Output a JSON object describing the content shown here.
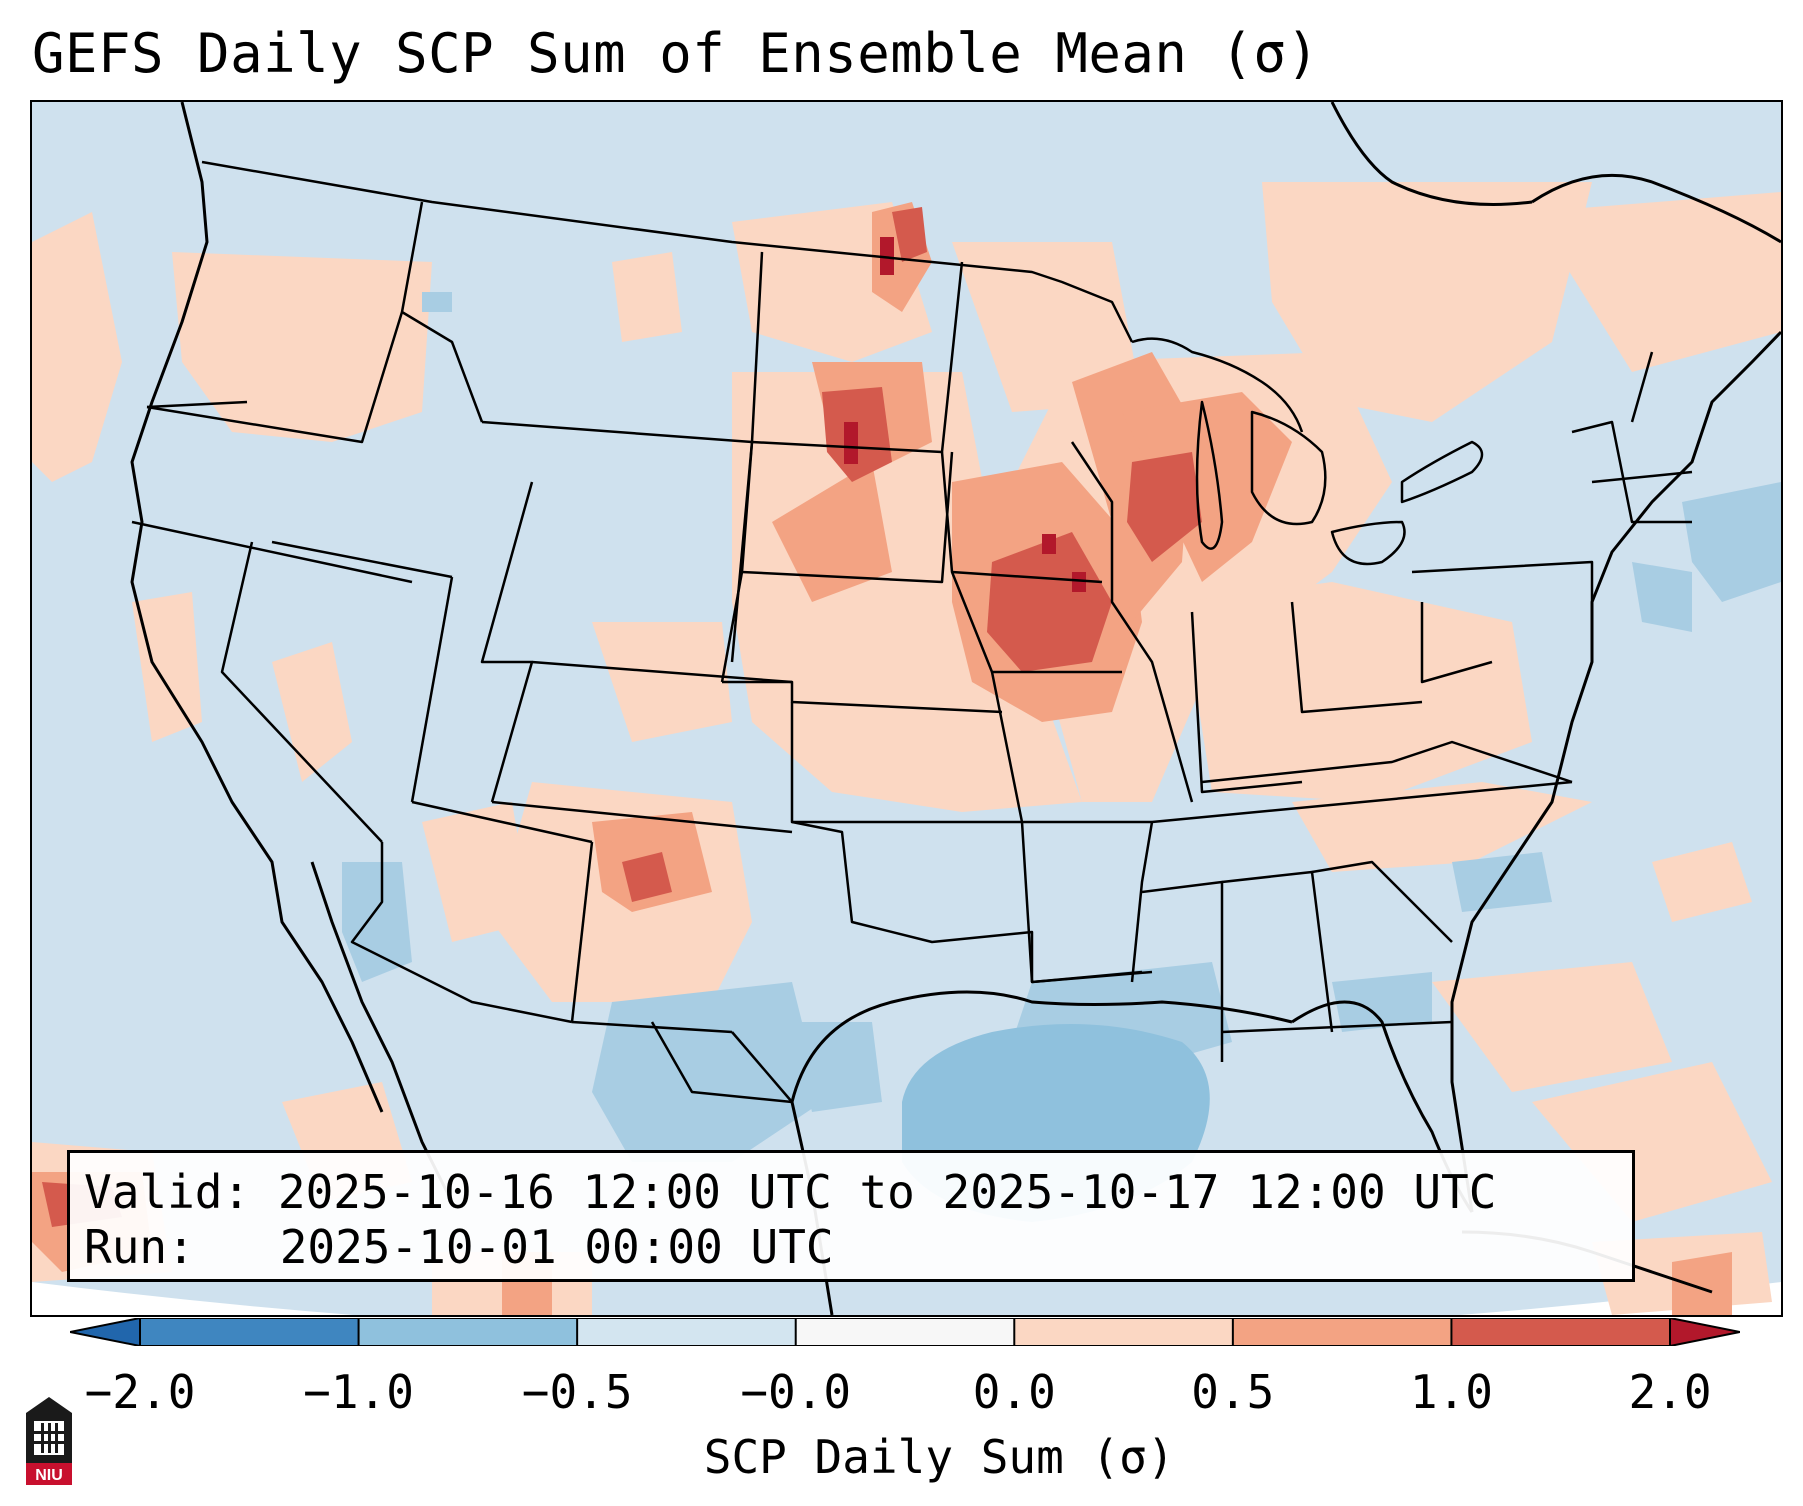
{
  "title": "GEFS Daily SCP Sum of Ensemble Mean (σ)",
  "info": {
    "valid_label": "Valid:",
    "valid_value": "2025-10-16 12:00 UTC to 2025-10-17 12:00 UTC",
    "run_label": "Run:",
    "run_value": "2025-10-01 00:00 UTC"
  },
  "colorbar": {
    "title": "SCP Daily Sum (σ)",
    "ticks": [
      "−2.0",
      "−1.0",
      "−0.5",
      "−0.0",
      "0.0",
      "0.5",
      "1.0",
      "2.0"
    ],
    "colors": [
      "#3f86c0",
      "#8fc1dd",
      "#d3e5f0",
      "#f7f7f7",
      "#fbd7c3",
      "#f3a383",
      "#d45a4d"
    ],
    "extend_low": "#2166ac",
    "extend_high": "#b2182b"
  },
  "logo": {
    "text": "NIU",
    "icon": "university-tower-icon",
    "colors": {
      "tower": "#1a1a1a",
      "band": "#c8102e"
    }
  },
  "map": {
    "background": "#cfe1ee",
    "ocean_circle_color": "#ffffff",
    "anomaly_colors": {
      "weak_positive": "#fbd7c3",
      "moderate_positive": "#f3a383",
      "strong_positive": "#d45a4d",
      "extreme_positive": "#b2182b",
      "weak_negative": "#a8cde3",
      "moderate_negative": "#8fc1dd"
    }
  }
}
